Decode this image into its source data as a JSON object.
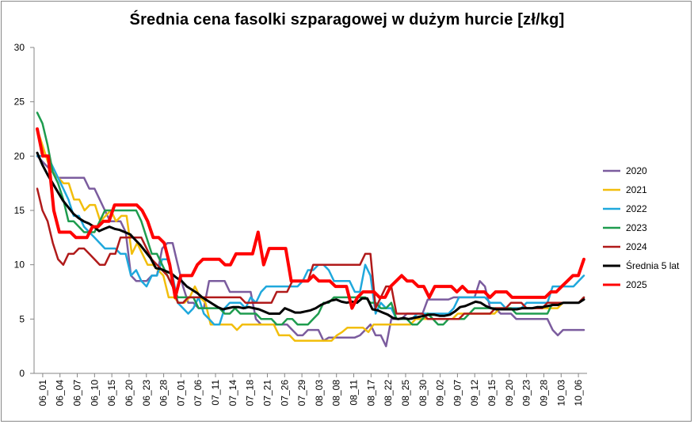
{
  "chart_data": {
    "type": "line",
    "title": "Średnia cena fasolki szparagowej w dużym hurcie [zł/kg]",
    "xlabel": "",
    "ylabel": "",
    "ylim": [
      0,
      30
    ],
    "yticks": [
      0,
      5,
      10,
      15,
      20,
      25,
      30
    ],
    "grid": false,
    "legend_position": "right",
    "x_tick_labels": [
      "06_01",
      "06_04",
      "06_07",
      "06_10",
      "06_15",
      "06_20",
      "06_23",
      "06_28",
      "07_01",
      "07_06",
      "07_11",
      "07_14",
      "07_18",
      "07_21",
      "07_26",
      "07_29",
      "08_03",
      "08_08",
      "08_11",
      "08_17",
      "08_22",
      "08_25",
      "08_30",
      "09_02",
      "09_07",
      "09_12",
      "09_15",
      "09_20",
      "09_23",
      "09_28",
      "10_03",
      "10_06"
    ],
    "series": [
      {
        "name": "2020",
        "color": "#7B5C9E",
        "width": 2.5,
        "values": [
          20,
          19.5,
          19,
          18.5,
          18,
          18,
          18,
          18,
          18,
          18,
          17,
          17,
          16,
          15,
          14,
          14,
          14,
          13,
          9,
          8.5,
          8.5,
          8.5,
          9,
          9,
          11.5,
          12,
          12,
          10,
          8,
          6.5,
          6.5,
          6,
          6,
          8.5,
          8.5,
          8.5,
          8.5,
          7.5,
          7.5,
          7.5,
          7.5,
          7.5,
          5,
          4.5,
          4.5,
          4.5,
          4.5,
          4.5,
          4.5,
          4,
          3.5,
          3.5,
          4,
          4,
          4,
          3,
          3.3,
          3.3,
          3.3,
          3.3,
          3.3,
          3.3,
          3.5,
          4,
          4.5,
          3.5,
          3.5,
          2.5,
          5,
          5,
          5,
          5.5,
          5.5,
          5.5,
          5.5,
          6.8,
          6.8,
          6.8,
          6.8,
          6.8,
          7,
          7,
          7,
          7,
          7,
          8.5,
          8,
          6,
          6,
          5.5,
          5.5,
          5.5,
          5,
          5,
          5,
          5,
          5,
          5,
          5,
          4,
          3.5,
          4,
          4,
          4,
          4,
          4
        ]
      },
      {
        "name": "2021",
        "color": "#F2BE0C",
        "width": 2.5,
        "values": [
          22.5,
          21,
          19.5,
          18.5,
          18,
          17.5,
          17.5,
          16,
          16,
          15,
          15.5,
          15.5,
          14,
          14.5,
          15,
          14,
          14.5,
          14.5,
          11,
          12,
          11,
          10,
          10,
          9.5,
          9,
          7,
          7,
          6.5,
          6.5,
          7,
          8,
          7,
          6.5,
          4.5,
          4.5,
          4.5,
          4.5,
          4.5,
          4,
          4.5,
          4.5,
          4.5,
          4.5,
          4.5,
          4.5,
          4.5,
          3.5,
          3.5,
          3.5,
          3,
          3,
          3,
          3,
          3,
          3,
          3,
          3,
          3.5,
          3.8,
          4.2,
          4.2,
          4.2,
          4.2,
          3.8,
          4.5,
          4.5,
          4.5,
          4.5,
          4.5,
          4.5,
          4.5,
          4.5,
          5,
          5,
          5,
          5,
          5,
          5,
          5,
          5,
          5.5,
          5.5,
          5.5,
          5.5,
          5.5,
          5.5,
          5.5,
          5.5,
          6,
          6,
          6,
          6,
          6,
          6,
          6,
          6,
          6,
          6,
          6,
          6,
          6.5,
          6.5,
          6.5,
          6.5,
          6.8
        ]
      },
      {
        "name": "2022",
        "color": "#1FA8DC",
        "width": 2.5,
        "values": [
          20,
          20,
          20,
          19,
          18,
          17,
          16,
          14.5,
          14.5,
          13.5,
          13,
          12.5,
          12,
          11.5,
          11.5,
          11.5,
          11,
          11,
          9,
          9.5,
          8.5,
          8,
          9,
          9,
          10.5,
          10.5,
          9,
          6.5,
          6,
          5.5,
          6,
          7,
          5.5,
          5,
          4.5,
          4.5,
          6,
          6.5,
          6.5,
          6.5,
          6,
          7,
          6.5,
          7.5,
          8,
          8,
          8,
          8,
          8,
          8,
          8,
          8.5,
          9.5,
          9.5,
          10,
          10,
          9.5,
          8.5,
          8.5,
          8.5,
          8.5,
          7.5,
          7.5,
          10,
          9,
          5.5,
          6.5,
          6,
          6,
          5,
          5,
          5,
          5,
          5.5,
          5.5,
          5.5,
          5.5,
          5.5,
          5.5,
          5.5,
          6,
          7,
          7,
          7,
          7,
          7,
          7,
          6.5,
          6.5,
          6.5,
          6,
          6,
          6,
          6,
          6.5,
          6.5,
          6.5,
          6.5,
          6.5,
          8,
          8,
          8,
          8,
          8,
          8.5,
          9
        ]
      },
      {
        "name": "2023",
        "color": "#1E9C4E",
        "width": 2.5,
        "values": [
          24,
          23,
          21,
          18.5,
          17.5,
          16,
          14,
          14,
          13.5,
          13,
          13,
          13,
          14,
          15,
          15,
          15,
          15,
          15,
          15,
          15,
          14,
          12.5,
          11,
          11,
          10,
          9,
          8,
          7,
          7,
          7,
          7,
          6,
          6,
          6,
          6,
          6,
          5.5,
          5.5,
          6,
          5.5,
          5.5,
          5.5,
          5.5,
          5,
          5,
          5,
          4.5,
          4.5,
          5,
          5,
          4.5,
          4.5,
          4.5,
          5,
          5.5,
          6.5,
          6.5,
          7,
          7,
          7,
          7,
          7,
          7,
          7,
          6.5,
          6.5,
          6,
          6,
          6.5,
          5,
          5,
          5,
          4.5,
          4.5,
          5,
          5.5,
          5,
          4.5,
          4.5,
          5,
          5,
          5,
          5,
          5.5,
          6,
          6,
          6,
          6,
          6,
          6,
          6,
          6,
          5.5,
          5.5,
          5.5,
          5.5,
          5.5,
          5.5,
          5.5,
          6.5,
          6.5,
          6.5,
          6.5,
          6.5,
          6.5,
          7
        ]
      },
      {
        "name": "2024",
        "color": "#B01A1A",
        "width": 2.5,
        "values": [
          17,
          15,
          14,
          12,
          10.5,
          10,
          11,
          11,
          11.5,
          11.5,
          11,
          10.5,
          10,
          10,
          11,
          11,
          12.5,
          12.5,
          12.5,
          12.5,
          12.5,
          11.5,
          10.5,
          10,
          9.5,
          9,
          8,
          6.5,
          6.5,
          7,
          7,
          7,
          7,
          7,
          7,
          7,
          7,
          7,
          7,
          7,
          6.5,
          6.5,
          6.5,
          6.5,
          6.5,
          6.5,
          7.5,
          7.5,
          7.5,
          8.5,
          8.5,
          8.5,
          8.5,
          10,
          10,
          10,
          10,
          10,
          10,
          10,
          10,
          10,
          10,
          11,
          11,
          6,
          7,
          8,
          8,
          5.5,
          5.5,
          5.5,
          5.5,
          5.5,
          5.5,
          5,
          5,
          5,
          5,
          5,
          5,
          5,
          5.5,
          5.5,
          5.5,
          5.5,
          5.5,
          5.5,
          6,
          6,
          6,
          6.5,
          6.5,
          6.5,
          6,
          6,
          6,
          6,
          6.5,
          6.5,
          6.5,
          6.5,
          6.5,
          6.5,
          6.5,
          7
        ]
      },
      {
        "name": "Średnia 5 lat",
        "color": "#000000",
        "width": 3,
        "values": [
          20.3,
          19.2,
          18.3,
          17.5,
          16.7,
          15.9,
          15.3,
          14.7,
          14.3,
          14,
          13.8,
          13.5,
          13.1,
          13.3,
          13.5,
          13.3,
          13.2,
          13,
          12.8,
          12.3,
          11.8,
          11.2,
          10.6,
          9.7,
          9.6,
          9.4,
          9.2,
          8.8,
          8.5,
          8,
          7.7,
          7.4,
          7,
          6.7,
          6.4,
          6.1,
          5.9,
          6,
          6.1,
          6.1,
          6,
          6.1,
          6,
          5.9,
          5.7,
          5.5,
          5.5,
          5.5,
          6,
          5.8,
          5.6,
          5.6,
          5.7,
          5.8,
          6,
          6.3,
          6.5,
          6.7,
          6.8,
          6.6,
          6.5,
          6.6,
          6.5,
          6.9,
          6.9,
          5.9,
          5.8,
          5.6,
          5.4,
          5.1,
          5,
          5.1,
          5,
          5.1,
          5.2,
          5.3,
          5.4,
          5.4,
          5.3,
          5.3,
          5.4,
          5.7,
          6.1,
          6.2,
          6.4,
          6.6,
          6.5,
          6.2,
          6,
          5.9,
          5.9,
          5.9,
          5.9,
          5.9,
          6,
          6,
          6,
          6.1,
          6.1,
          6.2,
          6.3,
          6.3,
          6.5,
          6.5,
          6.5,
          6.5,
          6.8
        ]
      },
      {
        "name": "2025",
        "color": "#FF0000",
        "width": 4,
        "values": [
          22.5,
          20,
          20,
          15,
          13,
          13,
          13,
          12.5,
          12.5,
          12.5,
          13.5,
          13.5,
          14,
          14,
          15.5,
          15.5,
          15.5,
          15.5,
          15.5,
          15,
          14,
          12.5,
          12.5,
          12,
          10,
          7,
          9,
          9,
          9,
          10,
          10.5,
          10.5,
          10.5,
          10.5,
          10,
          10,
          11,
          11,
          11,
          11,
          13,
          10,
          11.5,
          11.5,
          11.5,
          11.5,
          8.5,
          8.5,
          8.5,
          8.5,
          9,
          8.5,
          8.5,
          8.5,
          8,
          8,
          8,
          6,
          7,
          7.5,
          7.5,
          7.5,
          7,
          7,
          8,
          8.5,
          9,
          8.5,
          8.5,
          8,
          8,
          7,
          8,
          8,
          8,
          8,
          7.5,
          8,
          7.5,
          7.5,
          7.5,
          7.5,
          7,
          7.5,
          7.5,
          7.5,
          7,
          7,
          7,
          7,
          7,
          7,
          7,
          7.5,
          7.5,
          8,
          8.5,
          9,
          9,
          10.5
        ]
      }
    ]
  }
}
